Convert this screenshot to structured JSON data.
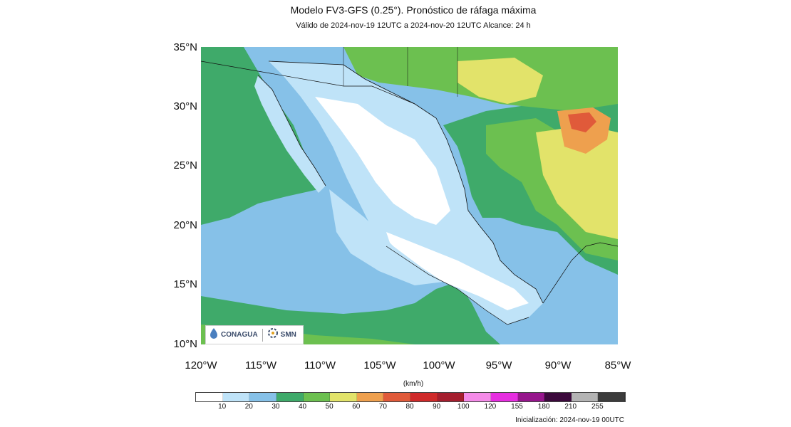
{
  "header": {
    "title": "Modelo FV3-GFS (0.25°). Pronóstico de ráfaga máxima",
    "subtitle": "Válido de 2024-nov-19 12UTC a 2024-nov-20 12UTC    Alcance: 24 h"
  },
  "axes": {
    "lat_labels": [
      "35°N",
      "30°N",
      "25°N",
      "20°N",
      "15°N",
      "10°N"
    ],
    "lon_labels": [
      "120°W",
      "115°W",
      "110°W",
      "105°W",
      "100°W",
      "95°W",
      "90°W",
      "85°W"
    ]
  },
  "colorbar": {
    "unit": "(km/h)",
    "labels": [
      "10",
      "20",
      "30",
      "40",
      "50",
      "60",
      "70",
      "80",
      "90",
      "100",
      "120",
      "155",
      "180",
      "210",
      "255"
    ],
    "colors": [
      "#ffffff",
      "#bfe3f8",
      "#86c1e8",
      "#3faa6a",
      "#6cc050",
      "#e2e36a",
      "#eea04e",
      "#e05a3a",
      "#cf2a2a",
      "#a51e2e",
      "#f48be8",
      "#e62ee0",
      "#96168c",
      "#3c0a3c",
      "#b4b4b4",
      "#3c3c3c"
    ]
  },
  "logos": {
    "conagua": "CONAGUA",
    "smn": "SMN"
  },
  "footer": {
    "init": "Inicialización: 2024-nov-19 00UTC"
  }
}
